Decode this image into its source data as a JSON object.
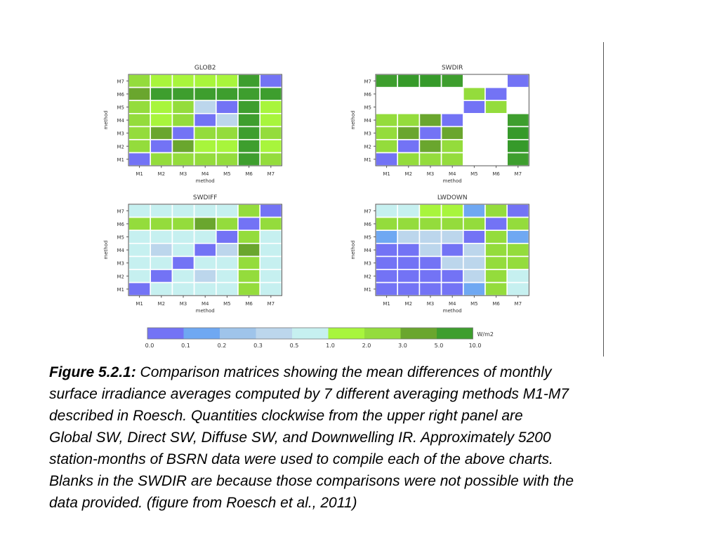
{
  "chart_data": [
    {
      "type": "heatmap",
      "title": "GLOB2",
      "xlabel": "method",
      "ylabel": "method",
      "x_categories": [
        "M1",
        "M2",
        "M3",
        "M4",
        "M5",
        "M6",
        "M7"
      ],
      "y_categories": [
        "M1",
        "M2",
        "M3",
        "M4",
        "M5",
        "M6",
        "M7"
      ],
      "rows_top_to_bottom": [
        "M7",
        "M6",
        "M5",
        "M4",
        "M3",
        "M2",
        "M1"
      ],
      "cells": [
        [
          6,
          5,
          5,
          5,
          5,
          8,
          0
        ],
        [
          7,
          8,
          8,
          8,
          8,
          8,
          8
        ],
        [
          6,
          5,
          6,
          3,
          0,
          8,
          5
        ],
        [
          6,
          5,
          6,
          0,
          3,
          8,
          5
        ],
        [
          6,
          7,
          0,
          6,
          6,
          8,
          6
        ],
        [
          6,
          0,
          7,
          5,
          5,
          8,
          5
        ],
        [
          0,
          6,
          6,
          6,
          6,
          8,
          6
        ]
      ]
    },
    {
      "type": "heatmap",
      "title": "SWDIR",
      "xlabel": "method",
      "ylabel": "method",
      "x_categories": [
        "M1",
        "M2",
        "M3",
        "M4",
        "M5",
        "M6",
        "M7"
      ],
      "y_categories": [
        "M1",
        "M2",
        "M3",
        "M4",
        "M5",
        "M6",
        "M7"
      ],
      "rows_top_to_bottom": [
        "M7",
        "M6",
        "M5",
        "M4",
        "M3",
        "M2",
        "M1"
      ],
      "cells": [
        [
          8,
          9,
          9,
          8,
          null,
          null,
          0
        ],
        [
          null,
          null,
          null,
          null,
          6,
          0,
          null
        ],
        [
          null,
          null,
          null,
          null,
          0,
          6,
          null
        ],
        [
          6,
          6,
          7,
          0,
          null,
          null,
          8
        ],
        [
          6,
          7,
          0,
          7,
          null,
          null,
          9
        ],
        [
          6,
          0,
          7,
          6,
          null,
          null,
          9
        ],
        [
          0,
          6,
          6,
          6,
          null,
          null,
          8
        ]
      ]
    },
    {
      "type": "heatmap",
      "title": "SWDIFF",
      "xlabel": "method",
      "ylabel": "method",
      "x_categories": [
        "M1",
        "M2",
        "M3",
        "M4",
        "M5",
        "M6",
        "M7"
      ],
      "y_categories": [
        "M1",
        "M2",
        "M3",
        "M4",
        "M5",
        "M6",
        "M7"
      ],
      "rows_top_to_bottom": [
        "M7",
        "M6",
        "M5",
        "M4",
        "M3",
        "M2",
        "M1"
      ],
      "cells": [
        [
          4,
          4,
          4,
          4,
          4,
          6,
          0
        ],
        [
          6,
          6,
          6,
          7,
          6,
          0,
          6
        ],
        [
          4,
          4,
          4,
          4,
          0,
          6,
          4
        ],
        [
          4,
          3,
          4,
          0,
          3,
          7,
          4
        ],
        [
          4,
          4,
          0,
          4,
          4,
          6,
          4
        ],
        [
          4,
          0,
          4,
          3,
          4,
          6,
          4
        ],
        [
          0,
          4,
          4,
          4,
          4,
          6,
          4
        ]
      ]
    },
    {
      "type": "heatmap",
      "title": "LWDOWN",
      "xlabel": "method",
      "ylabel": "method",
      "x_categories": [
        "M1",
        "M2",
        "M3",
        "M4",
        "M5",
        "M6",
        "M7"
      ],
      "y_categories": [
        "M1",
        "M2",
        "M3",
        "M4",
        "M5",
        "M6",
        "M7"
      ],
      "rows_top_to_bottom": [
        "M7",
        "M6",
        "M5",
        "M4",
        "M3",
        "M2",
        "M1"
      ],
      "cells": [
        [
          4,
          4,
          5,
          5,
          1,
          6,
          0
        ],
        [
          6,
          6,
          6,
          6,
          6,
          0,
          6
        ],
        [
          1,
          3,
          3,
          3,
          0,
          6,
          1
        ],
        [
          0,
          0,
          3,
          0,
          3,
          6,
          6
        ],
        [
          0,
          0,
          0,
          3,
          3,
          6,
          6
        ],
        [
          0,
          0,
          0,
          0,
          3,
          6,
          4
        ],
        [
          0,
          0,
          0,
          0,
          1,
          6,
          4
        ]
      ]
    }
  ],
  "colorbar": {
    "unit": "W/m2",
    "tick_labels": [
      "0.0",
      "0.1",
      "0.2",
      "0.3",
      "0.5",
      "1.0",
      "2.0",
      "3.0",
      "5.0",
      "10.0"
    ],
    "colors": [
      "#7373f5",
      "#6fa8f2",
      "#9fc4ea",
      "#bcd6ec",
      "#c6f0f0",
      "#a8f53c",
      "#94dc3c",
      "#6aa62e",
      "#3e9e2e"
    ]
  },
  "palette": [
    "#7373f5",
    "#6fa8f2",
    "#9fc4ea",
    "#bcd6ec",
    "#c6f0f0",
    "#a8f53c",
    "#94dc3c",
    "#6aa62e",
    "#3e9e2e",
    "#369a2a"
  ],
  "caption": {
    "label": "Figure 5.2.1:",
    "line1": " Comparison matrices showing the mean differences of monthly",
    "line2": "surface irradiance averages computed by 7 different averaging methods M1-M7",
    "line3": " described in Roesch. Quantities clockwise from the upper right panel are",
    "line4": "Global SW, Direct SW, Diffuse SW, and Downwelling IR. Approximately 5200",
    "line5": " station-months of BSRN data were used to compile each of the above charts.",
    "line6": " Blanks in the SWDIR are because those comparisons were not possible with the",
    "line7": " data provided. (figure from Roesch et al., 2011)"
  }
}
